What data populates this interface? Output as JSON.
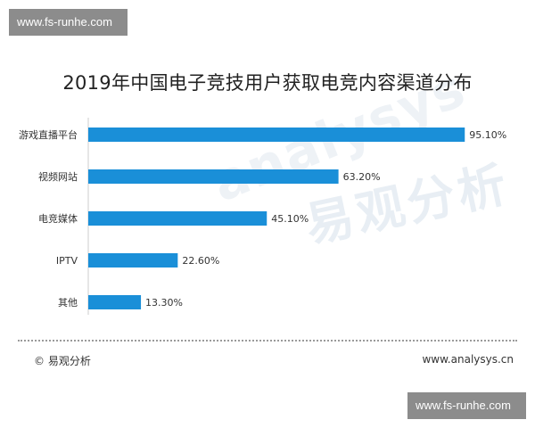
{
  "watermark": {
    "top": "www.fs-runhe.com",
    "bottom": "www.fs-runhe.com"
  },
  "background_logo": {
    "cn": "易观分析",
    "en": "analysys"
  },
  "footer": {
    "source": "© 易观分析",
    "url": "www.analysys.cn"
  },
  "colors": {
    "bar": "#1a8fd8",
    "text": "#333333"
  },
  "chart_data": {
    "type": "bar",
    "orientation": "horizontal",
    "title": "2019年中国电子竞技用户获取电竞内容渠道分布",
    "categories": [
      "游戏直播平台",
      "视频网站",
      "电竞媒体",
      "IPTV",
      "其他"
    ],
    "values": [
      95.1,
      63.2,
      45.1,
      22.6,
      13.3
    ],
    "value_labels": [
      "95.10%",
      "63.20%",
      "45.10%",
      "22.60%",
      "13.30%"
    ],
    "unit": "%",
    "xlim": [
      0,
      100
    ],
    "grid": false,
    "legend": "none"
  }
}
